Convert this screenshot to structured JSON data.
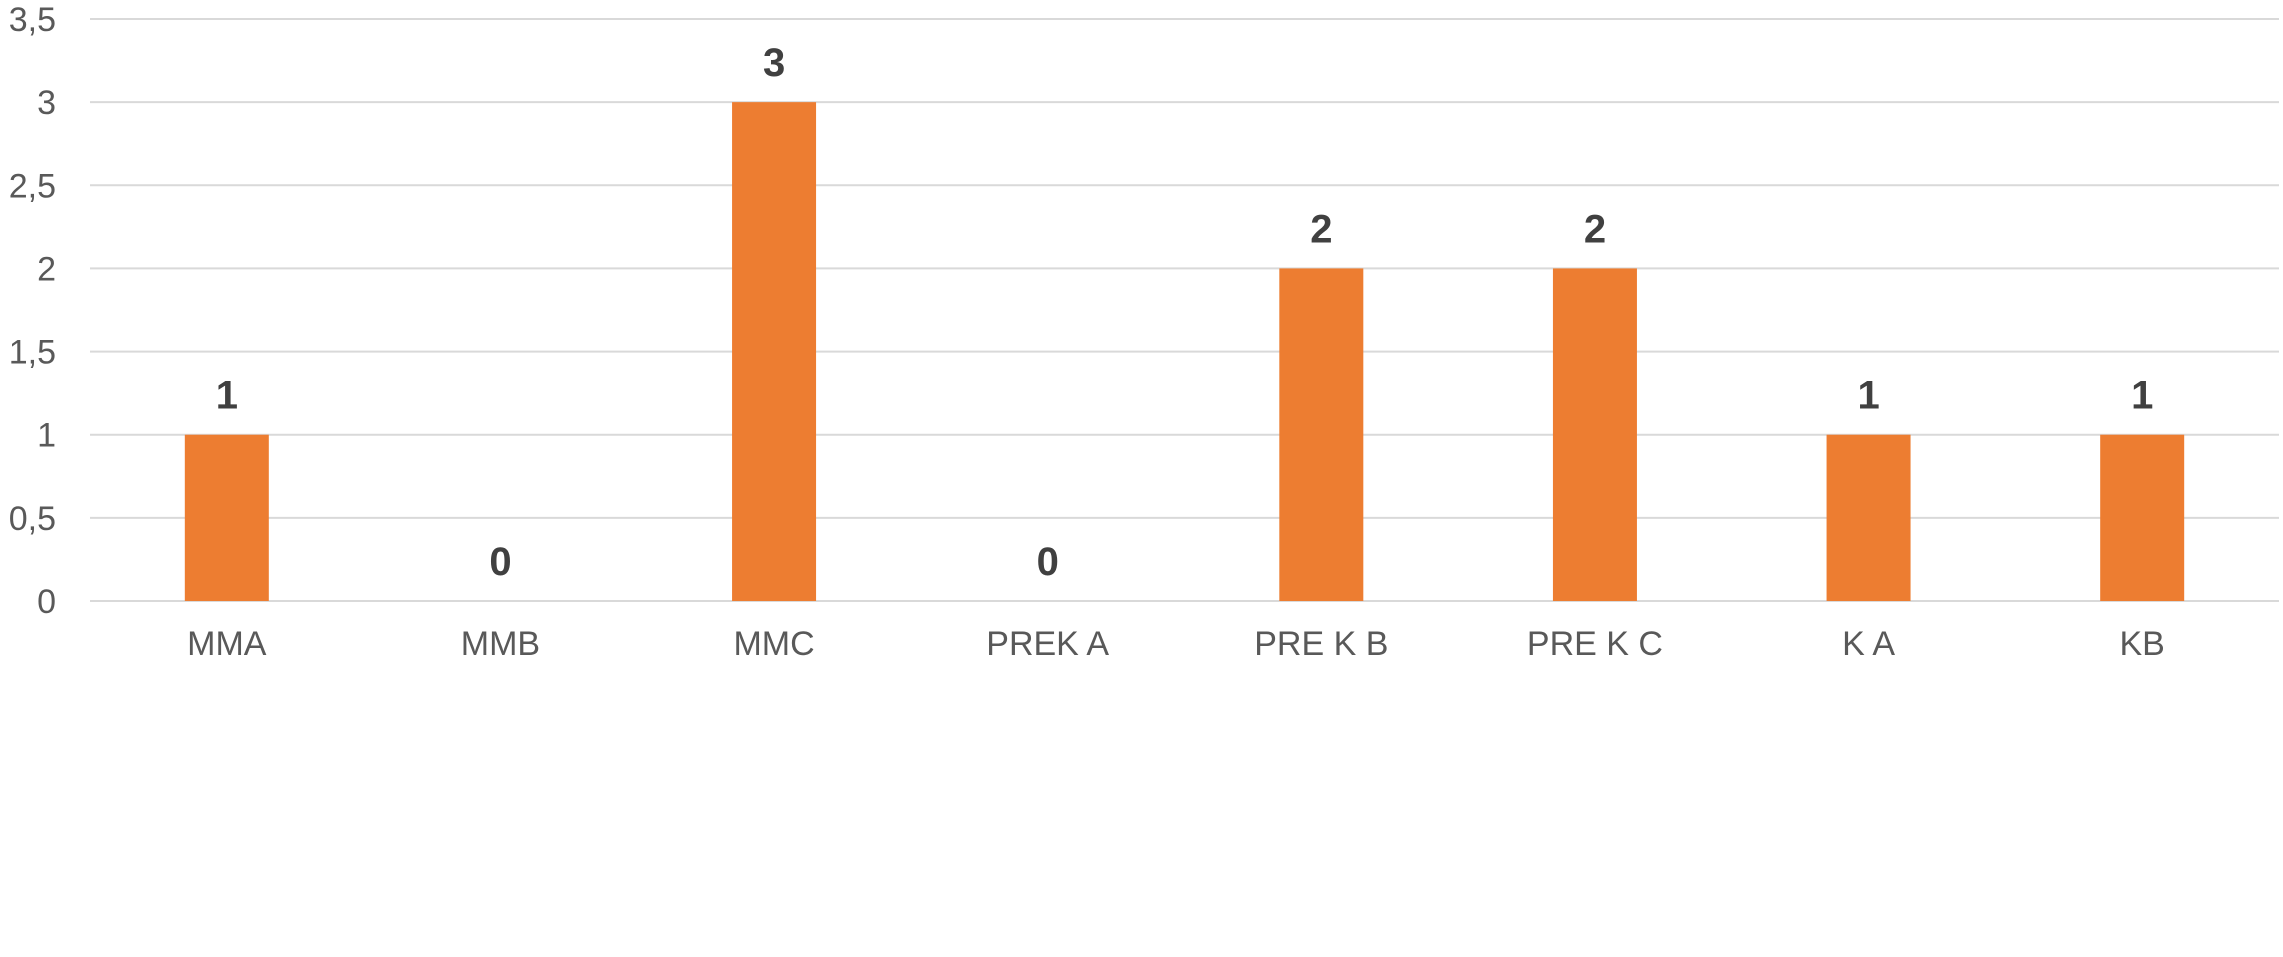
{
  "chart_data": {
    "type": "bar",
    "categories": [
      "MMA",
      "MMB",
      "MMC",
      "PREK A",
      "PRE K B",
      "PRE K C",
      "K A",
      "KB"
    ],
    "values": [
      1,
      0,
      3,
      0,
      2,
      2,
      1,
      1
    ],
    "data_labels": [
      "1",
      "0",
      "3",
      "0",
      "2",
      "2",
      "1",
      "1"
    ],
    "y_ticks": [
      0,
      0.5,
      1,
      1.5,
      2,
      2.5,
      3,
      3.5
    ],
    "y_tick_labels": [
      "0",
      "0,5",
      "1",
      "1,5",
      "2",
      "2,5",
      "3",
      "3,5"
    ],
    "ylim": [
      0,
      3.5
    ],
    "grid": true,
    "legend": "none",
    "title": "",
    "xlabel": "",
    "ylabel": "",
    "bar_color": "#ED7D31",
    "gridline_color": "#D9D9D9",
    "label_color": "#404040",
    "tick_color": "#595959"
  }
}
